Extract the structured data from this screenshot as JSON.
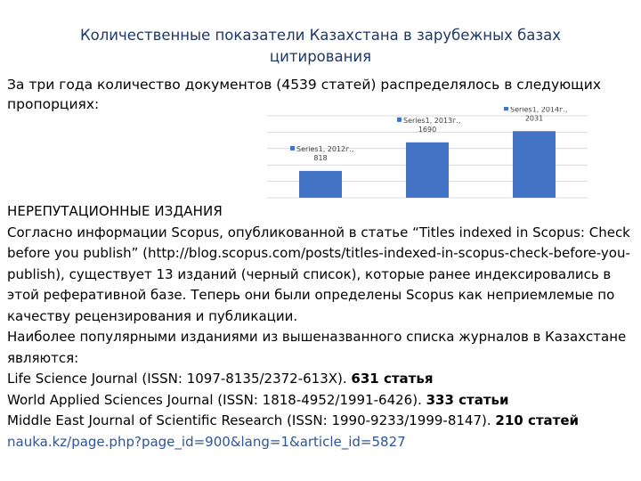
{
  "title": "Количественные показатели Казахстана в зарубежных базах цитирования",
  "intro": "За три года количество документов (4539 статей) распределялось в следующих пропорциях:",
  "chart_data": {
    "type": "bar",
    "categories": [
      "2012г.",
      "2013г.",
      "2014г."
    ],
    "series": [
      {
        "name": "Series1",
        "values": [
          818,
          1690,
          2031
        ],
        "labels": [
          [
            "Series1, 2012г.,",
            "818"
          ],
          [
            "Series1, 2013г.,",
            "1690"
          ],
          [
            "Series1, 2014г.,",
            "2031"
          ]
        ]
      }
    ],
    "ylim": [
      0,
      2500
    ],
    "grid": true,
    "colors": {
      "bar": "#4472c4",
      "grid": "#d9d9d9"
    }
  },
  "section": {
    "heading": "НЕРЕПУТАЦИОННЫЕ ИЗДАНИЯ",
    "paragraph1": "Согласно информации Scopus, опубликованной в статье “Titles indexed in Scopus: Check before you publish” (http://blog.scopus.com/posts/titles-indexed-in-scopus-check-before-you-publish), существует 13 изданий (черный список), которые ранее индексировались в этой реферативной базе. Теперь они были определены Scopus как неприемлемые по качеству рецензирования и публикации.",
    "paragraph2": "Наиболее популярными изданиями из вышеназванного списка журналов в Казахстане являются:",
    "journals": [
      {
        "text": "Life Science Journal (ISSN: 1097-8135/2372-613X). ",
        "count": "631 статья"
      },
      {
        "text": "World Applied Sciences Journal (ISSN: 1818-4952/1991-6426). ",
        "count": "333 статьи"
      },
      {
        "text": "Middle East Journal of Scientific Research (ISSN: 1990-9233/1999-8147). ",
        "count": "210 статей"
      }
    ],
    "link": "nauka.kz/page.php?page_id=900&lang=1&article_id=5827"
  }
}
